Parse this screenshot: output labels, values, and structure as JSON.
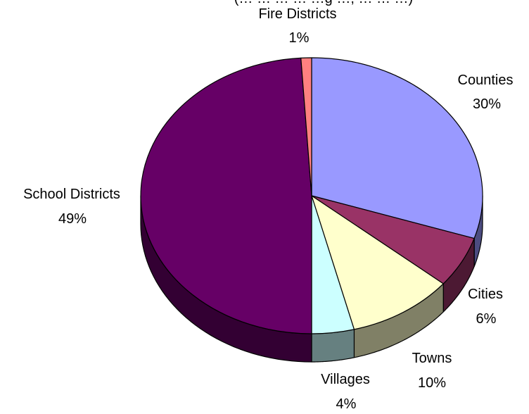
{
  "chart_data": {
    "type": "pie",
    "title": "",
    "clipped_title_fragment": "(… … … … …g …, … … …)",
    "slices": [
      {
        "name": "Counties",
        "label": "30%",
        "value": 30,
        "color": "#9999ff",
        "side_color": "#4c4c80"
      },
      {
        "name": "Cities",
        "label": "6%",
        "value": 6,
        "color": "#993366",
        "side_color": "#4c1933"
      },
      {
        "name": "Towns",
        "label": "10%",
        "value": 10,
        "color": "#ffffcc",
        "side_color": "#808066"
      },
      {
        "name": "Villages",
        "label": "4%",
        "value": 4,
        "color": "#ccffff",
        "side_color": "#668080"
      },
      {
        "name": "School Districts",
        "label": "49%",
        "value": 49,
        "color": "#660066",
        "side_color": "#330033"
      },
      {
        "name": "Fire Districts",
        "label": "1%",
        "value": 1,
        "color": "#ff8080",
        "side_color": "#804040"
      }
    ],
    "start_angle_deg": 0,
    "direction": "clockwise",
    "style": "3d-pie",
    "legend": "none",
    "data_labels": "category-and-percent"
  }
}
